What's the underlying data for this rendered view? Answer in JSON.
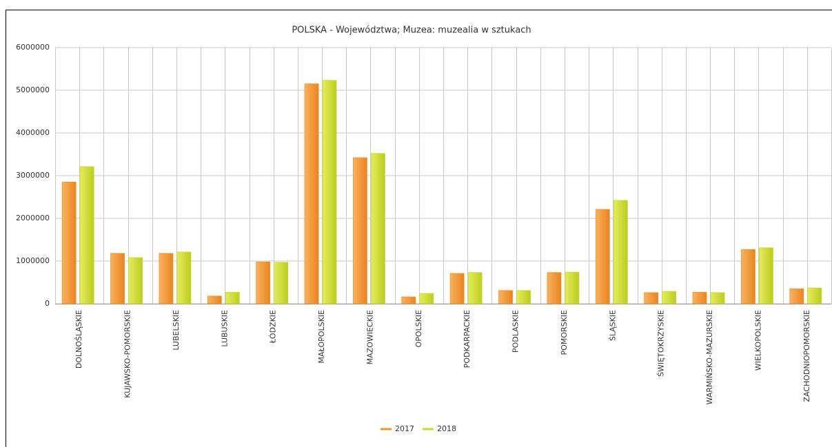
{
  "chart_data": {
    "type": "bar",
    "title": "POLSKA - Województwa; Muzea: muzealia w sztukach",
    "categories": [
      "DOLNOŚLĄSKIE",
      "KUJAWSKO-POMORSKIE",
      "LUBELSKIE",
      "LUBUSKIE",
      "ŁÓDZKIE",
      "MAŁOPOLSKIE",
      "MAZOWIECKIE",
      "OPOLSKIE",
      "PODKARPACKIE",
      "PODLASKIE",
      "POMORSKIE",
      "ŚLĄSKIE",
      "ŚWIĘTOKRZYSKIE",
      "WARMIŃSKO-MAZURSKIE",
      "WIELKOPOLSKIE",
      "ZACHODNIOPOMORSKIE"
    ],
    "series": [
      {
        "name": "2017",
        "color": "#f0922f",
        "values": [
          2850000,
          1180000,
          1180000,
          180000,
          980000,
          5150000,
          3420000,
          160000,
          710000,
          310000,
          730000,
          2210000,
          260000,
          270000,
          1270000,
          350000
        ]
      },
      {
        "name": "2018",
        "color": "#c9d82e",
        "values": [
          3210000,
          1080000,
          1210000,
          270000,
          970000,
          5230000,
          3520000,
          240000,
          730000,
          310000,
          740000,
          2420000,
          290000,
          260000,
          1310000,
          370000
        ]
      }
    ],
    "ylim": [
      0,
      6000000
    ],
    "yticks": [
      0,
      1000000,
      2000000,
      3000000,
      4000000,
      5000000,
      6000000
    ],
    "grid": true,
    "legend": "bottom"
  }
}
